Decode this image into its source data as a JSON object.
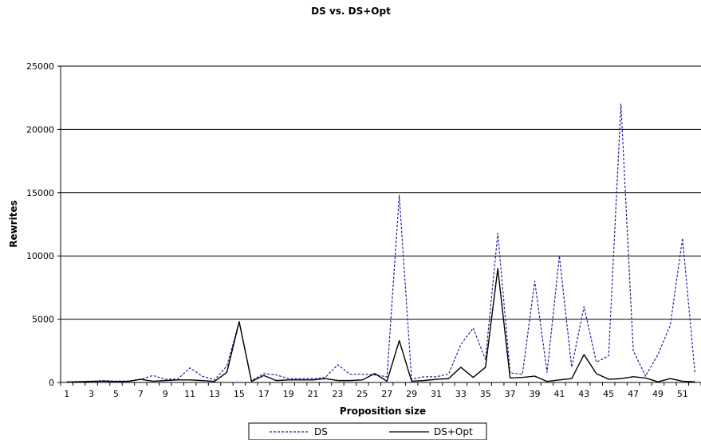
{
  "chart_data": {
    "type": "line",
    "title": "DS vs. DS+Opt",
    "xlabel": "Proposition size",
    "ylabel": "Rewrites",
    "x": [
      1,
      2,
      3,
      4,
      5,
      6,
      7,
      8,
      9,
      10,
      11,
      12,
      13,
      14,
      15,
      16,
      17,
      18,
      19,
      20,
      21,
      22,
      23,
      24,
      25,
      26,
      27,
      28,
      29,
      30,
      31,
      32,
      33,
      34,
      35,
      36,
      37,
      38,
      39,
      40,
      41,
      42,
      43,
      44,
      45,
      46,
      47,
      48,
      49,
      50,
      51,
      52
    ],
    "x_tick_labels": [
      "1",
      "3",
      "5",
      "7",
      "9",
      "11",
      "13",
      "15",
      "17",
      "19",
      "21",
      "23",
      "25",
      "27",
      "29",
      "31",
      "33",
      "35",
      "37",
      "39",
      "41",
      "43",
      "45",
      "47",
      "49",
      "51"
    ],
    "ylim": [
      0,
      25000
    ],
    "y_ticks": [
      0,
      5000,
      10000,
      15000,
      20000,
      25000
    ],
    "y_tick_labels": [
      "0",
      "5000",
      "10000",
      "15000",
      "20000",
      "25000"
    ],
    "grid": "horizontal",
    "legend_position": "bottom",
    "series": [
      {
        "name": "DS",
        "color": "#1f1fa0",
        "style": "dashed",
        "values": [
          50,
          80,
          100,
          150,
          100,
          120,
          250,
          550,
          250,
          250,
          1150,
          500,
          200,
          1300,
          4800,
          150,
          700,
          600,
          300,
          300,
          300,
          400,
          1400,
          650,
          650,
          600,
          450,
          14800,
          250,
          450,
          450,
          650,
          3000,
          4300,
          1800,
          11800,
          750,
          650,
          8000,
          800,
          10000,
          1200,
          6000,
          1600,
          2100,
          22000,
          2500,
          500,
          2200,
          4500,
          11400,
          800
        ]
      },
      {
        "name": "DS+Opt",
        "color": "#000000",
        "style": "solid",
        "values": [
          30,
          50,
          80,
          100,
          80,
          80,
          250,
          100,
          150,
          200,
          200,
          150,
          80,
          800,
          4800,
          80,
          550,
          150,
          200,
          200,
          200,
          300,
          150,
          150,
          200,
          700,
          100,
          3300,
          100,
          150,
          250,
          300,
          1200,
          400,
          1200,
          9000,
          350,
          400,
          500,
          80,
          200,
          300,
          2200,
          700,
          250,
          300,
          450,
          350,
          50,
          300,
          100,
          50
        ]
      }
    ]
  }
}
